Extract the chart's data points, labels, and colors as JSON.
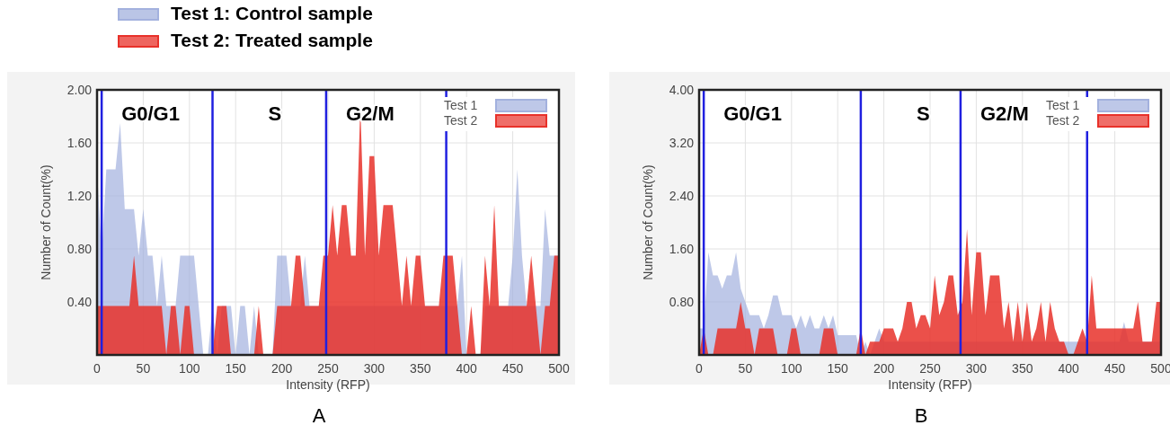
{
  "chart_data": [
    {
      "type": "other",
      "annotations": [
        "Test 1: Control sample",
        "Test 2: Treated sample"
      ],
      "colors": [
        "#a3b1de",
        "#e8312a"
      ]
    },
    {
      "type": "area",
      "title": "A",
      "xlabel": "Intensity (RFP)",
      "ylabel": "Number of Count(%)",
      "xlim": [
        0,
        500
      ],
      "ylim": [
        0,
        2
      ],
      "xticks": [
        0,
        50,
        100,
        150,
        200,
        250,
        300,
        350,
        400,
        450,
        500
      ],
      "yticks": [
        {
          "value": 0.4,
          "label": "0.40"
        },
        {
          "value": 0.8,
          "label": "0.80"
        },
        {
          "value": 1.2,
          "label": "1.20"
        },
        {
          "value": 1.6,
          "label": "1.60"
        },
        {
          "value": 2,
          "label": "2.00"
        }
      ],
      "grid": true,
      "legend": "top right",
      "x": [
        0,
        5,
        10,
        15,
        20,
        25,
        30,
        35,
        40,
        45,
        50,
        55,
        60,
        65,
        70,
        75,
        80,
        85,
        90,
        95,
        100,
        105,
        110,
        115,
        120,
        125,
        130,
        135,
        140,
        145,
        150,
        155,
        160,
        165,
        170,
        175,
        180,
        185,
        190,
        195,
        200,
        205,
        210,
        215,
        220,
        225,
        230,
        235,
        240,
        245,
        250,
        255,
        260,
        265,
        270,
        275,
        280,
        285,
        290,
        295,
        300,
        305,
        310,
        315,
        320,
        325,
        330,
        335,
        340,
        345,
        350,
        355,
        360,
        365,
        370,
        375,
        380,
        385,
        390,
        395,
        400,
        405,
        410,
        415,
        420,
        425,
        430,
        435,
        440,
        445,
        450,
        455,
        460,
        465,
        470,
        475,
        480,
        485,
        490,
        495,
        500
      ],
      "series": [
        {
          "name": "Test 1",
          "color": "#a3b1de",
          "values": [
            1.4,
            0.75,
            1.4,
            1.4,
            1.4,
            1.75,
            1.1,
            1.1,
            1.1,
            0.75,
            1.1,
            0.75,
            0.75,
            0.37,
            0.75,
            0.37,
            0.37,
            0.37,
            0.75,
            0.75,
            0.75,
            0.75,
            0.37,
            0,
            0,
            0.37,
            0,
            0.37,
            0.37,
            0.37,
            0,
            0.37,
            0.37,
            0,
            0.37,
            0,
            0,
            0,
            0,
            0.75,
            0.75,
            0.75,
            0.37,
            0.37,
            0.37,
            0.75,
            0.37,
            0.37,
            0.37,
            0.37,
            0.37,
            0.37,
            0.37,
            0.37,
            0.37,
            0.37,
            0.37,
            0.37,
            0.37,
            0.37,
            0.37,
            0.37,
            0.37,
            0.37,
            0.37,
            0.37,
            0.37,
            0.37,
            0.37,
            0.37,
            0.37,
            0.37,
            0.37,
            0.37,
            0.37,
            0.37,
            0.37,
            0.37,
            0.37,
            0.75,
            0,
            0,
            0,
            0,
            0.37,
            0.37,
            0.37,
            0.37,
            0.37,
            0.37,
            0.75,
            1.4,
            0.75,
            0.37,
            0.37,
            0.37,
            0.37,
            1.1,
            0.75,
            0.75,
            0.75
          ]
        },
        {
          "name": "Test 2",
          "color": "#e8312a",
          "values": [
            0.37,
            0.37,
            0.37,
            0.37,
            0.37,
            0.37,
            0.37,
            0.37,
            0.75,
            0.37,
            0.37,
            0.37,
            0.37,
            0.37,
            0.37,
            0,
            0.37,
            0.37,
            0,
            0.37,
            0.37,
            0,
            0,
            0,
            0,
            0,
            0.37,
            0.37,
            0.37,
            0,
            0,
            0,
            0,
            0,
            0,
            0.37,
            0,
            0,
            0,
            0.37,
            0.37,
            0.37,
            0.37,
            0.75,
            0.75,
            0.37,
            0.37,
            0.37,
            0.37,
            0.75,
            0.75,
            1.13,
            0.75,
            1.13,
            1.13,
            0.75,
            0.75,
            1.88,
            0.75,
            1.5,
            1.5,
            0.75,
            1.13,
            1.13,
            1.13,
            0.75,
            0.37,
            0.75,
            0.37,
            0.75,
            0.75,
            0.37,
            0.37,
            0.37,
            0.37,
            0.75,
            0.75,
            0.75,
            0.37,
            0,
            0,
            0.37,
            0,
            0,
            0.75,
            0.37,
            1.13,
            0.37,
            0.37,
            0.37,
            0.37,
            0.37,
            0.37,
            0.37,
            0.75,
            0.37,
            0,
            0.37,
            0.37,
            0.75,
            0.75
          ]
        }
      ],
      "ref_lines": [
        {
          "axis": "x",
          "value": 5,
          "color": "#2020e0"
        },
        {
          "axis": "x",
          "value": 125,
          "color": "#2020e0"
        },
        {
          "axis": "x",
          "value": 248,
          "color": "#2020e0"
        },
        {
          "axis": "x",
          "value": 378,
          "color": "#2020e0"
        }
      ],
      "annotations": [
        "G0/G1",
        "S",
        "G2/M"
      ]
    },
    {
      "type": "area",
      "title": "B",
      "xlabel": "Intensity (RFP)",
      "ylabel": "Number of Count(%)",
      "xlim": [
        0,
        500
      ],
      "ylim": [
        0,
        4
      ],
      "xticks": [
        0,
        50,
        100,
        150,
        200,
        250,
        300,
        350,
        400,
        450,
        500
      ],
      "yticks": [
        {
          "value": 0.8,
          "label": "0.80"
        },
        {
          "value": 1.6,
          "label": "1.60"
        },
        {
          "value": 2.4,
          "label": "2.40"
        },
        {
          "value": 3.2,
          "label": "3.20"
        },
        {
          "value": 4,
          "label": "4.00"
        }
      ],
      "grid": true,
      "legend": "top right",
      "x": [
        0,
        5,
        10,
        15,
        20,
        25,
        30,
        35,
        40,
        45,
        50,
        55,
        60,
        65,
        70,
        75,
        80,
        85,
        90,
        95,
        100,
        105,
        110,
        115,
        120,
        125,
        130,
        135,
        140,
        145,
        150,
        155,
        160,
        165,
        170,
        175,
        180,
        185,
        190,
        195,
        200,
        205,
        210,
        215,
        220,
        225,
        230,
        235,
        240,
        245,
        250,
        255,
        260,
        265,
        270,
        275,
        280,
        285,
        290,
        295,
        300,
        305,
        310,
        315,
        320,
        325,
        330,
        335,
        340,
        345,
        350,
        355,
        360,
        365,
        370,
        375,
        380,
        385,
        390,
        395,
        400,
        405,
        410,
        415,
        420,
        425,
        430,
        435,
        440,
        445,
        450,
        455,
        460,
        465,
        470,
        475,
        480,
        485,
        490,
        495,
        500
      ],
      "series": [
        {
          "name": "Test 1",
          "color": "#a3b1de",
          "values": [
            0.4,
            0.4,
            1.55,
            1.2,
            1.2,
            1.0,
            1.2,
            1.2,
            1.55,
            1.0,
            0.8,
            0.6,
            0.6,
            0.6,
            0.4,
            0.6,
            0.9,
            0.9,
            0.6,
            0.6,
            0.6,
            0.4,
            0.6,
            0.4,
            0.6,
            0.4,
            0.4,
            0.6,
            0.4,
            0.6,
            0.3,
            0.3,
            0.3,
            0.3,
            0.3,
            0,
            0.2,
            0,
            0.2,
            0.4,
            0.2,
            0.2,
            0.2,
            0.2,
            0.2,
            0.2,
            0.2,
            0.2,
            0.2,
            0.2,
            0.2,
            0.2,
            0.2,
            0.2,
            0.2,
            0.2,
            0.2,
            0.2,
            0.2,
            0.2,
            0.2,
            0.2,
            0.2,
            0.2,
            0.2,
            0.2,
            0.2,
            0.2,
            0.2,
            0.2,
            0.2,
            0.2,
            0.2,
            0.2,
            0.2,
            0.2,
            0.2,
            0.2,
            0.2,
            0.2,
            0.2,
            0.2,
            0.2,
            0.2,
            0.2,
            0.2,
            0.2,
            0.2,
            0.2,
            0.2,
            0.2,
            0.2,
            0.5,
            0.2,
            0.2,
            0.2,
            0.2,
            0.2,
            0.2,
            0.2,
            0.2
          ]
        },
        {
          "name": "Test 2",
          "color": "#e8312a",
          "values": [
            0,
            0.4,
            0,
            0,
            0.4,
            0.4,
            0.4,
            0.4,
            0.4,
            0.8,
            0.4,
            0.4,
            0,
            0.4,
            0.4,
            0.4,
            0.4,
            0,
            0,
            0,
            0.4,
            0.4,
            0,
            0,
            0,
            0,
            0,
            0.4,
            0.4,
            0.4,
            0,
            0,
            0,
            0,
            0,
            0.4,
            0,
            0.2,
            0.2,
            0.2,
            0.4,
            0.4,
            0.4,
            0.2,
            0.4,
            0.8,
            0.8,
            0.4,
            0.6,
            0.6,
            0.4,
            1.2,
            0.6,
            0.8,
            1.2,
            1.2,
            0.6,
            0.8,
            1.9,
            0.6,
            1.55,
            1.55,
            0.6,
            1.2,
            1.2,
            1.2,
            0.4,
            0.8,
            0.2,
            0.8,
            0.2,
            0.8,
            0.2,
            0.4,
            0.8,
            0.2,
            0.8,
            0.4,
            0.2,
            0.2,
            0,
            0,
            0.2,
            0.4,
            0.2,
            1.2,
            0.4,
            0.4,
            0.4,
            0.4,
            0.4,
            0.4,
            0.4,
            0.4,
            0.4,
            0.8,
            0.2,
            0.2,
            0.2,
            0.8,
            0.8
          ]
        }
      ],
      "ref_lines": [
        {
          "axis": "x",
          "value": 5,
          "color": "#2020e0"
        },
        {
          "axis": "x",
          "value": 175,
          "color": "#2020e0"
        },
        {
          "axis": "x",
          "value": 283,
          "color": "#2020e0"
        },
        {
          "axis": "x",
          "value": 420,
          "color": "#2020e0"
        }
      ],
      "annotations": [
        "G0/G1",
        "S",
        "G2/M"
      ]
    }
  ]
}
